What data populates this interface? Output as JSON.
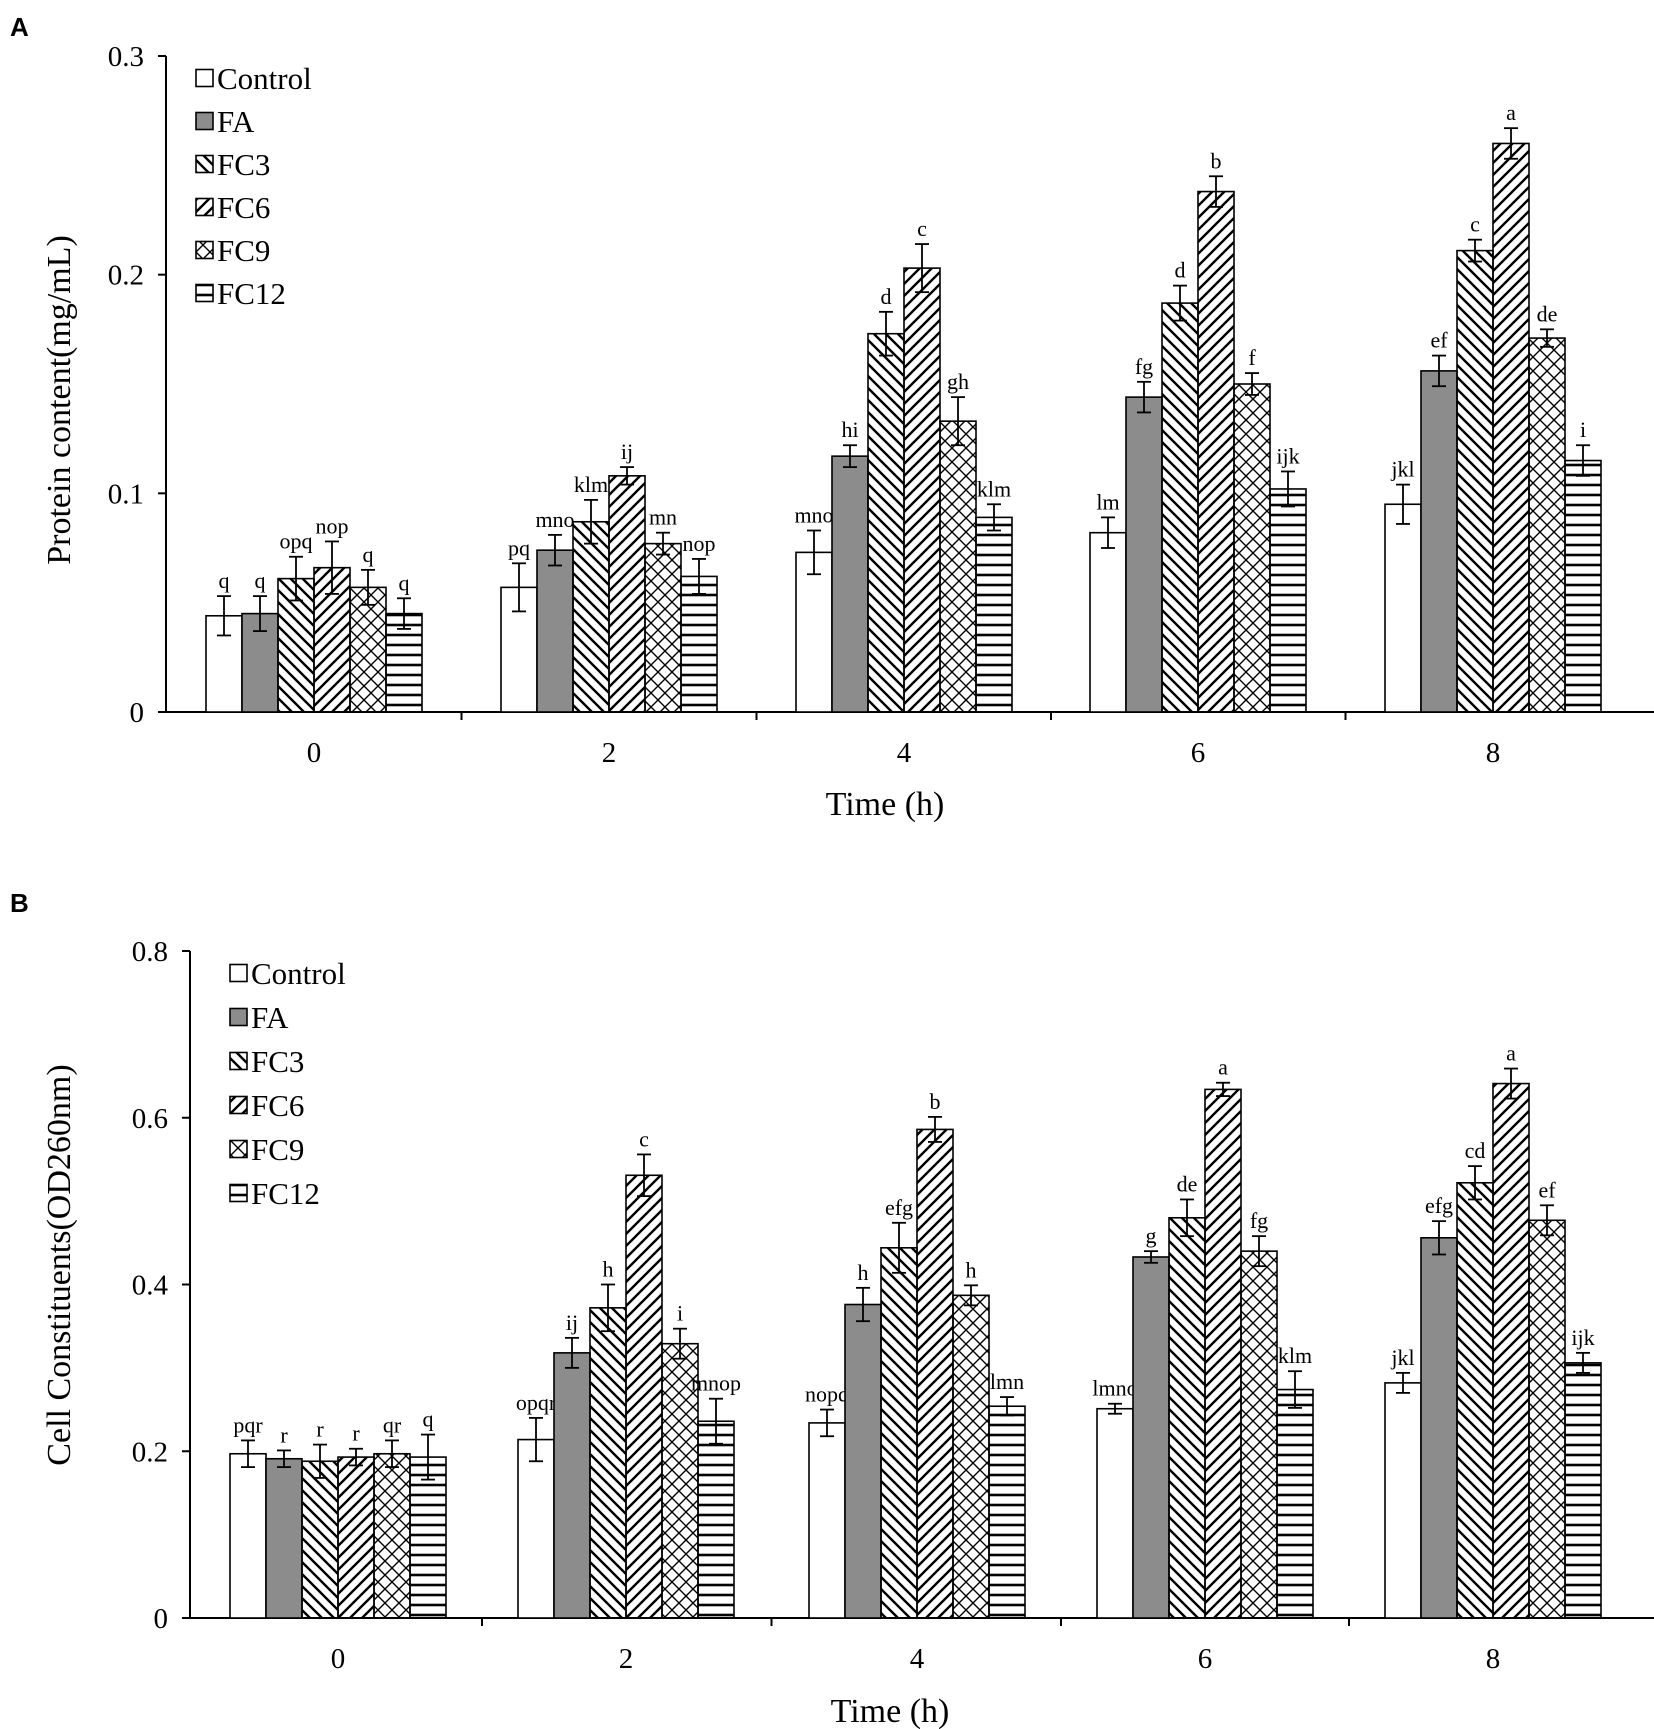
{
  "chart_data": [
    {
      "panel": "A",
      "type": "bar",
      "categories": [
        "0",
        "2",
        "4",
        "6",
        "8"
      ],
      "xlabel": "Time (h)",
      "ylabel": "Protein content(mg/mL)",
      "ylim": [
        0,
        0.3
      ],
      "yticks": [
        "0",
        "0.1",
        "0.2",
        "0.3"
      ],
      "legend_position": "top-left",
      "series": [
        {
          "name": "Control",
          "values": [
            0.044,
            0.057,
            0.073,
            0.082,
            0.095
          ],
          "errors": [
            0.009,
            0.011,
            0.01,
            0.007,
            0.009
          ],
          "labels": [
            "q",
            "pq",
            "mno",
            "lm",
            "jkl"
          ]
        },
        {
          "name": "FA",
          "values": [
            0.045,
            0.074,
            0.117,
            0.144,
            0.156
          ],
          "errors": [
            0.008,
            0.007,
            0.005,
            0.007,
            0.007
          ],
          "labels": [
            "q",
            "mno",
            "hi",
            "fg",
            "ef"
          ]
        },
        {
          "name": "FC3",
          "values": [
            0.061,
            0.087,
            0.173,
            0.187,
            0.211
          ],
          "errors": [
            0.01,
            0.01,
            0.01,
            0.008,
            0.005
          ],
          "labels": [
            "opq",
            "klm",
            "d",
            "d",
            "c"
          ]
        },
        {
          "name": "FC6",
          "values": [
            0.066,
            0.108,
            0.203,
            0.238,
            0.26
          ],
          "errors": [
            0.012,
            0.004,
            0.011,
            0.007,
            0.007
          ],
          "labels": [
            "nop",
            "ij",
            "c",
            "b",
            "a"
          ]
        },
        {
          "name": "FC9",
          "values": [
            0.057,
            0.077,
            0.133,
            0.15,
            0.171
          ],
          "errors": [
            0.008,
            0.005,
            0.011,
            0.005,
            0.004
          ],
          "labels": [
            "q",
            "mn",
            "gh",
            "f",
            "de"
          ]
        },
        {
          "name": "FC12",
          "values": [
            0.045,
            0.062,
            0.089,
            0.102,
            0.115
          ],
          "errors": [
            0.007,
            0.008,
            0.006,
            0.008,
            0.007
          ],
          "labels": [
            "q",
            "nop",
            "klm",
            "ijk",
            "i"
          ]
        }
      ]
    },
    {
      "panel": "B",
      "type": "bar",
      "categories": [
        "0",
        "2",
        "4",
        "6",
        "8"
      ],
      "xlabel": "Time (h)",
      "ylabel": "Cell Constituents(OD260nm)",
      "ylim": [
        0,
        0.8
      ],
      "yticks": [
        "0",
        "0.2",
        "0.4",
        "0.6",
        "0.8"
      ],
      "legend_position": "top-left",
      "series": [
        {
          "name": "Control",
          "values": [
            0.197,
            0.214,
            0.234,
            0.251,
            0.282
          ],
          "errors": [
            0.016,
            0.026,
            0.016,
            0.006,
            0.012
          ],
          "labels": [
            "pqr",
            "opqr",
            "nopq",
            "lmno",
            "jkl"
          ]
        },
        {
          "name": "FA",
          "values": [
            0.191,
            0.318,
            0.376,
            0.433,
            0.456
          ],
          "errors": [
            0.01,
            0.018,
            0.02,
            0.007,
            0.02
          ],
          "labels": [
            "r",
            "ij",
            "h",
            "g",
            "efg"
          ]
        },
        {
          "name": "FC3",
          "values": [
            0.188,
            0.372,
            0.444,
            0.48,
            0.522
          ],
          "errors": [
            0.02,
            0.028,
            0.03,
            0.022,
            0.02
          ],
          "labels": [
            "r",
            "h",
            "efg",
            "de",
            "cd"
          ]
        },
        {
          "name": "FC6",
          "values": [
            0.193,
            0.531,
            0.586,
            0.634,
            0.641
          ],
          "errors": [
            0.01,
            0.025,
            0.015,
            0.008,
            0.018
          ],
          "labels": [
            "r",
            "c",
            "b",
            "a",
            "a"
          ]
        },
        {
          "name": "FC9",
          "values": [
            0.197,
            0.329,
            0.387,
            0.44,
            0.477
          ],
          "errors": [
            0.016,
            0.018,
            0.012,
            0.018,
            0.018
          ],
          "labels": [
            "qr",
            "i",
            "h",
            "fg",
            "ef"
          ]
        },
        {
          "name": "FC12",
          "values": [
            0.193,
            0.236,
            0.254,
            0.274,
            0.306
          ],
          "errors": [
            0.027,
            0.027,
            0.011,
            0.022,
            0.012
          ],
          "labels": [
            "q",
            "mnop",
            "lmn",
            "klm",
            "ijk"
          ]
        }
      ]
    }
  ]
}
